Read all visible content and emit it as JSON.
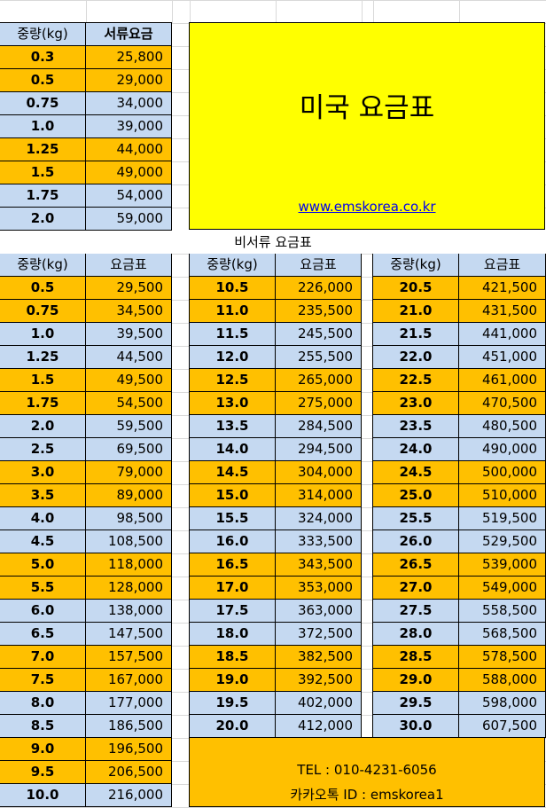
{
  "colors": {
    "orange": "#FFC000",
    "blue": "#C5D9F1",
    "yellow": "#FFFF00",
    "link": "#0000EE"
  },
  "document_table": {
    "headers": [
      "중량(kg)",
      "서류요금"
    ],
    "rows": [
      [
        "0.3",
        "25,800"
      ],
      [
        "0.5",
        "29,000"
      ],
      [
        "0.75",
        "34,000"
      ],
      [
        "1.0",
        "39,000"
      ],
      [
        "1.25",
        "44,000"
      ],
      [
        "1.5",
        "49,000"
      ],
      [
        "1.75",
        "54,000"
      ],
      [
        "2.0",
        "59,000"
      ]
    ]
  },
  "banner": {
    "title": "미국 요금표",
    "link": "www.emskorea.co.kr"
  },
  "non_document": {
    "title": "비서류 요금표",
    "headers": [
      "중량(kg)",
      "요금표"
    ],
    "columns": [
      [
        [
          "0.5",
          "29,500"
        ],
        [
          "0.75",
          "34,500"
        ],
        [
          "1.0",
          "39,500"
        ],
        [
          "1.25",
          "44,500"
        ],
        [
          "1.5",
          "49,500"
        ],
        [
          "1.75",
          "54,500"
        ],
        [
          "2.0",
          "59,500"
        ],
        [
          "2.5",
          "69,500"
        ],
        [
          "3.0",
          "79,000"
        ],
        [
          "3.5",
          "89,000"
        ],
        [
          "4.0",
          "98,500"
        ],
        [
          "4.5",
          "108,500"
        ],
        [
          "5.0",
          "118,000"
        ],
        [
          "5.5",
          "128,000"
        ],
        [
          "6.0",
          "138,000"
        ],
        [
          "6.5",
          "147,500"
        ],
        [
          "7.0",
          "157,500"
        ],
        [
          "7.5",
          "167,000"
        ],
        [
          "8.0",
          "177,000"
        ],
        [
          "8.5",
          "186,500"
        ],
        [
          "9.0",
          "196,500"
        ],
        [
          "9.5",
          "206,500"
        ],
        [
          "10.0",
          "216,000"
        ]
      ],
      [
        [
          "10.5",
          "226,000"
        ],
        [
          "11.0",
          "235,500"
        ],
        [
          "11.5",
          "245,500"
        ],
        [
          "12.0",
          "255,500"
        ],
        [
          "12.5",
          "265,000"
        ],
        [
          "13.0",
          "275,000"
        ],
        [
          "13.5",
          "284,500"
        ],
        [
          "14.0",
          "294,500"
        ],
        [
          "14.5",
          "304,000"
        ],
        [
          "15.0",
          "314,000"
        ],
        [
          "15.5",
          "324,000"
        ],
        [
          "16.0",
          "333,500"
        ],
        [
          "16.5",
          "343,500"
        ],
        [
          "17.0",
          "353,000"
        ],
        [
          "17.5",
          "363,000"
        ],
        [
          "18.0",
          "372,500"
        ],
        [
          "18.5",
          "382,500"
        ],
        [
          "19.0",
          "392,500"
        ],
        [
          "19.5",
          "402,000"
        ],
        [
          "20.0",
          "412,000"
        ]
      ],
      [
        [
          "20.5",
          "421,500"
        ],
        [
          "21.0",
          "431,500"
        ],
        [
          "21.5",
          "441,000"
        ],
        [
          "22.0",
          "451,000"
        ],
        [
          "22.5",
          "461,000"
        ],
        [
          "23.0",
          "470,500"
        ],
        [
          "23.5",
          "480,500"
        ],
        [
          "24.0",
          "490,000"
        ],
        [
          "24.5",
          "500,000"
        ],
        [
          "25.0",
          "510,000"
        ],
        [
          "25.5",
          "519,500"
        ],
        [
          "26.0",
          "529,500"
        ],
        [
          "26.5",
          "539,000"
        ],
        [
          "27.0",
          "549,000"
        ],
        [
          "27.5",
          "558,500"
        ],
        [
          "28.0",
          "568,500"
        ],
        [
          "28.5",
          "578,500"
        ],
        [
          "29.0",
          "588,000"
        ],
        [
          "29.5",
          "598,000"
        ],
        [
          "30.0",
          "607,500"
        ]
      ]
    ]
  },
  "contact": {
    "tel": "TEL : 010-4231-6056",
    "kakao": "카카오톡 ID : emskorea1"
  }
}
